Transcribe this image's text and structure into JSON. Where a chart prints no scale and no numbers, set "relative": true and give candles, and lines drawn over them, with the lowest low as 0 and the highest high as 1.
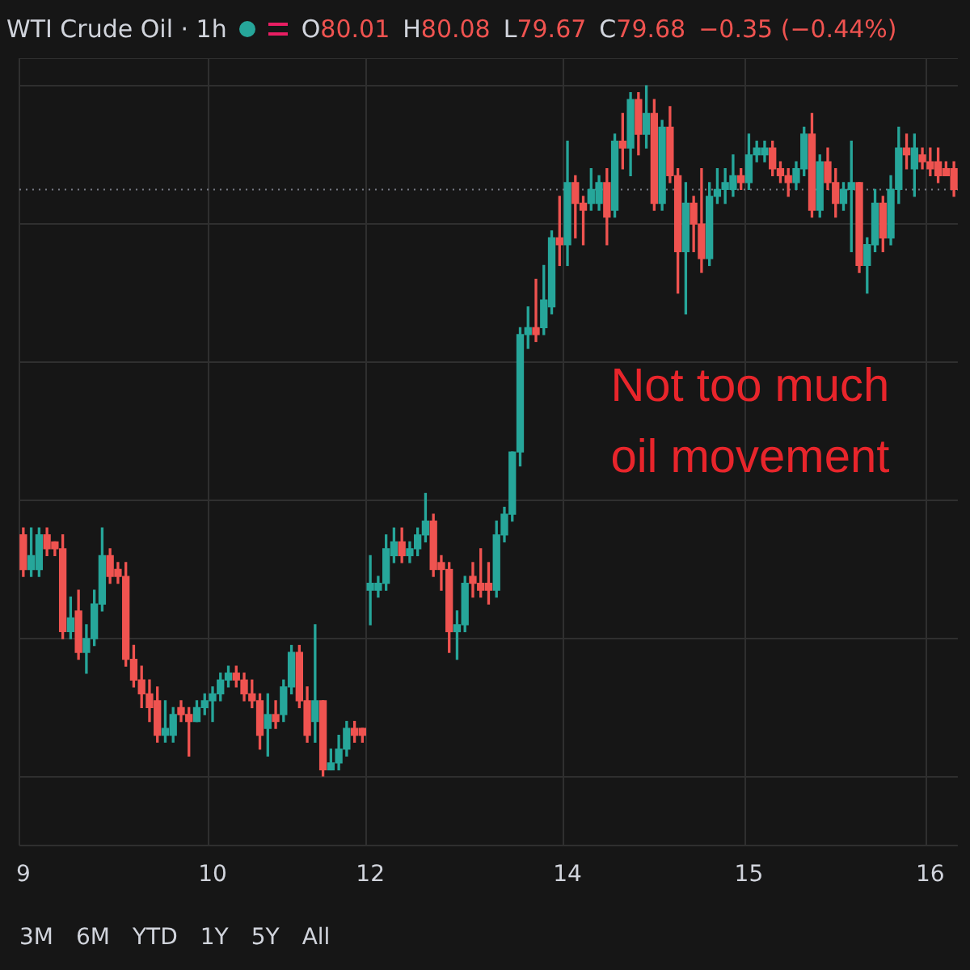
{
  "chart_data": {
    "type": "candlestick",
    "title": "WTI Crude Oil · 1h",
    "relative": true,
    "grid": true,
    "legend": false,
    "annotations": [
      "O80.01",
      "H80.08",
      "L79.67",
      "C79.68",
      "−0.35 (−0.44%)",
      "Not too much oil movement",
      "3M",
      "6M",
      "YTD",
      "1Y",
      "5Y",
      "All"
    ],
    "ref_lines": [
      {
        "axis": "y",
        "value": 0.85,
        "color": "#787b86",
        "line_style": "dotted"
      }
    ],
    "categories": [
      "9",
      null,
      null,
      null,
      null,
      null,
      null,
      null,
      null,
      null,
      null,
      null,
      null,
      null,
      null,
      null,
      null,
      null,
      null,
      null,
      null,
      null,
      null,
      null,
      "10",
      null,
      null,
      null,
      null,
      null,
      null,
      null,
      null,
      null,
      null,
      null,
      null,
      null,
      null,
      null,
      null,
      null,
      null,
      null,
      "12",
      null,
      null,
      null,
      null,
      null,
      null,
      null,
      null,
      null,
      null,
      null,
      null,
      null,
      null,
      null,
      null,
      null,
      null,
      null,
      null,
      null,
      null,
      null,
      null,
      "14",
      null,
      null,
      null,
      null,
      null,
      null,
      null,
      null,
      null,
      null,
      null,
      null,
      null,
      null,
      null,
      null,
      null,
      null,
      null,
      null,
      null,
      null,
      "15",
      null,
      null,
      null,
      null,
      null,
      null,
      null,
      null,
      null,
      null,
      null,
      null,
      null,
      null,
      null,
      null,
      null,
      null,
      null,
      null,
      null,
      null,
      "16",
      null,
      null,
      null
    ],
    "ohlc": [
      [
        0.35,
        0.36,
        0.29,
        0.3
      ],
      [
        0.3,
        0.36,
        0.29,
        0.32
      ],
      [
        0.3,
        0.36,
        0.29,
        0.35
      ],
      [
        0.35,
        0.36,
        0.32,
        0.33
      ],
      [
        0.34,
        0.34,
        0.32,
        0.33
      ],
      [
        0.33,
        0.35,
        0.2,
        0.21
      ],
      [
        0.21,
        0.26,
        0.2,
        0.23
      ],
      [
        0.24,
        0.27,
        0.17,
        0.18
      ],
      [
        0.18,
        0.22,
        0.15,
        0.2
      ],
      [
        0.2,
        0.27,
        0.19,
        0.25
      ],
      [
        0.25,
        0.36,
        0.24,
        0.32
      ],
      [
        0.32,
        0.33,
        0.28,
        0.29
      ],
      [
        0.3,
        0.31,
        0.28,
        0.29
      ],
      [
        0.29,
        0.31,
        0.16,
        0.17
      ],
      [
        0.17,
        0.19,
        0.13,
        0.14
      ],
      [
        0.14,
        0.16,
        0.1,
        0.12
      ],
      [
        0.12,
        0.14,
        0.08,
        0.1
      ],
      [
        0.11,
        0.13,
        0.05,
        0.06
      ],
      [
        0.06,
        0.11,
        0.05,
        0.07
      ],
      [
        0.06,
        0.1,
        0.05,
        0.09
      ],
      [
        0.1,
        0.11,
        0.08,
        0.09
      ],
      [
        0.09,
        0.1,
        0.03,
        0.08
      ],
      [
        0.08,
        0.11,
        0.08,
        0.1
      ],
      [
        0.1,
        0.12,
        0.09,
        0.11
      ],
      [
        0.11,
        0.13,
        0.08,
        0.12
      ],
      [
        0.12,
        0.15,
        0.11,
        0.14
      ],
      [
        0.14,
        0.16,
        0.13,
        0.15
      ],
      [
        0.15,
        0.16,
        0.13,
        0.14
      ],
      [
        0.14,
        0.15,
        0.11,
        0.12
      ],
      [
        0.12,
        0.14,
        0.1,
        0.11
      ],
      [
        0.11,
        0.12,
        0.04,
        0.06
      ],
      [
        0.07,
        0.12,
        0.03,
        0.09
      ],
      [
        0.09,
        0.11,
        0.07,
        0.08
      ],
      [
        0.09,
        0.14,
        0.08,
        0.13
      ],
      [
        0.13,
        0.19,
        0.12,
        0.18
      ],
      [
        0.18,
        0.19,
        0.1,
        0.11
      ],
      [
        0.11,
        0.13,
        0.05,
        0.06
      ],
      [
        0.08,
        0.22,
        0.05,
        0.11
      ],
      [
        0.11,
        0.11,
        0,
        0.01
      ],
      [
        0.01,
        0.04,
        0.01,
        0.02
      ],
      [
        0.02,
        0.06,
        0.01,
        0.04
      ],
      [
        0.04,
        0.08,
        0.03,
        0.07
      ],
      [
        0.07,
        0.08,
        0.05,
        0.06
      ],
      [
        0.07,
        0.07,
        0.05,
        0.06
      ],
      [
        0.27,
        0.32,
        0.22,
        0.28
      ],
      [
        0.27,
        0.29,
        0.26,
        0.28
      ],
      [
        0.28,
        0.35,
        0.27,
        0.33
      ],
      [
        0.32,
        0.36,
        0.31,
        0.34
      ],
      [
        0.34,
        0.36,
        0.31,
        0.32
      ],
      [
        0.32,
        0.34,
        0.31,
        0.33
      ],
      [
        0.33,
        0.36,
        0.32,
        0.35
      ],
      [
        0.35,
        0.41,
        0.34,
        0.37
      ],
      [
        0.37,
        0.38,
        0.29,
        0.3
      ],
      [
        0.31,
        0.32,
        0.27,
        0.3
      ],
      [
        0.3,
        0.31,
        0.18,
        0.21
      ],
      [
        0.21,
        0.24,
        0.17,
        0.22
      ],
      [
        0.22,
        0.29,
        0.21,
        0.28
      ],
      [
        0.29,
        0.31,
        0.26,
        0.28
      ],
      [
        0.28,
        0.33,
        0.26,
        0.27
      ],
      [
        0.28,
        0.31,
        0.25,
        0.27
      ],
      [
        0.27,
        0.37,
        0.26,
        0.35
      ],
      [
        0.35,
        0.39,
        0.34,
        0.38
      ],
      [
        0.38,
        0.47,
        0.37,
        0.47
      ],
      [
        0.47,
        0.65,
        0.45,
        0.64
      ],
      [
        0.64,
        0.68,
        0.62,
        0.65
      ],
      [
        0.65,
        0.72,
        0.63,
        0.64
      ],
      [
        0.65,
        0.74,
        0.64,
        0.69
      ],
      [
        0.68,
        0.79,
        0.67,
        0.78
      ],
      [
        0.78,
        0.84,
        0.74,
        0.77
      ],
      [
        0.77,
        0.92,
        0.74,
        0.86
      ],
      [
        0.86,
        0.87,
        0.78,
        0.83
      ],
      [
        0.83,
        0.84,
        0.77,
        0.82
      ],
      [
        0.83,
        0.88,
        0.82,
        0.85
      ],
      [
        0.83,
        0.87,
        0.82,
        0.86
      ],
      [
        0.86,
        0.88,
        0.77,
        0.81
      ],
      [
        0.82,
        0.93,
        0.81,
        0.92
      ],
      [
        0.92,
        0.96,
        0.88,
        0.91
      ],
      [
        0.91,
        0.99,
        0.87,
        0.98
      ],
      [
        0.98,
        0.99,
        0.9,
        0.93
      ],
      [
        0.93,
        1,
        0.91,
        0.96
      ],
      [
        0.96,
        0.98,
        0.82,
        0.83
      ],
      [
        0.83,
        0.95,
        0.82,
        0.94
      ],
      [
        0.94,
        0.97,
        0.86,
        0.87
      ],
      [
        0.87,
        0.88,
        0.7,
        0.76
      ],
      [
        0.76,
        0.86,
        0.67,
        0.83
      ],
      [
        0.83,
        0.84,
        0.76,
        0.8
      ],
      [
        0.8,
        0.88,
        0.73,
        0.75
      ],
      [
        0.75,
        0.86,
        0.74,
        0.84
      ],
      [
        0.84,
        0.88,
        0.83,
        0.85
      ],
      [
        0.85,
        0.88,
        0.83,
        0.86
      ],
      [
        0.85,
        0.9,
        0.84,
        0.87
      ],
      [
        0.87,
        0.88,
        0.85,
        0.86
      ],
      [
        0.86,
        0.93,
        0.85,
        0.9
      ],
      [
        0.9,
        0.92,
        0.89,
        0.91
      ],
      [
        0.9,
        0.92,
        0.89,
        0.91
      ],
      [
        0.91,
        0.92,
        0.87,
        0.88
      ],
      [
        0.88,
        0.89,
        0.86,
        0.87
      ],
      [
        0.87,
        0.88,
        0.84,
        0.86
      ],
      [
        0.86,
        0.89,
        0.85,
        0.88
      ],
      [
        0.88,
        0.94,
        0.87,
        0.93
      ],
      [
        0.93,
        0.96,
        0.81,
        0.82
      ],
      [
        0.82,
        0.9,
        0.81,
        0.89
      ],
      [
        0.89,
        0.91,
        0.85,
        0.86
      ],
      [
        0.86,
        0.88,
        0.81,
        0.83
      ],
      [
        0.83,
        0.86,
        0.82,
        0.85
      ],
      [
        0.85,
        0.92,
        0.76,
        0.86
      ],
      [
        0.86,
        0.86,
        0.73,
        0.74
      ],
      [
        0.74,
        0.78,
        0.7,
        0.77
      ],
      [
        0.77,
        0.85,
        0.76,
        0.83
      ],
      [
        0.83,
        0.84,
        0.76,
        0.78
      ],
      [
        0.78,
        0.87,
        0.77,
        0.85
      ],
      [
        0.85,
        0.94,
        0.83,
        0.91
      ],
      [
        0.91,
        0.93,
        0.88,
        0.9
      ],
      [
        0.88,
        0.93,
        0.84,
        0.91
      ],
      [
        0.9,
        0.91,
        0.88,
        0.89
      ],
      [
        0.89,
        0.91,
        0.87,
        0.88
      ],
      [
        0.89,
        0.91,
        0.86,
        0.87
      ],
      [
        0.88,
        0.89,
        0.87,
        0.87
      ],
      [
        0.88,
        0.89,
        0.84,
        0.85
      ]
    ]
  }
}
